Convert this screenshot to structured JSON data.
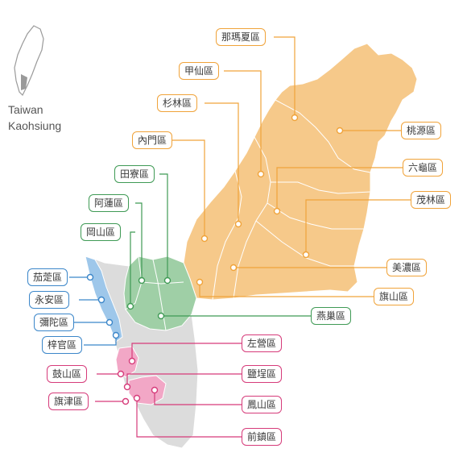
{
  "inset": {
    "line1": "Taiwan",
    "line2": "Kaohsiung"
  },
  "colors": {
    "mountain": "#f6c98a",
    "hill": "#9fcfa6",
    "coast": "#9ec7ea",
    "city": "#f2a7c6",
    "base": "#dcdcdc",
    "orange_line": "#f0a33a",
    "green_line": "#3f9a55",
    "blue_line": "#3b86c9",
    "pink_line": "#d63b7a"
  },
  "districts": {
    "namaxia": "那瑪夏區",
    "jiaxian": "甲仙區",
    "shanlin": "杉林區",
    "neimen": "內門區",
    "taoyuan": "桃源區",
    "liugui": "六龜區",
    "maolin": "茂林區",
    "meinong": "美濃區",
    "qishan": "旗山區",
    "tianliao": "田寮區",
    "alian": "阿蓮區",
    "gangshan": "岡山區",
    "yanchao": "燕巢區",
    "qieding": "茄萣區",
    "yongan": "永安區",
    "mituo": "彌陀區",
    "ziguan": "梓官區",
    "zuoying": "左營區",
    "gushan": "鼓山區",
    "yancheng": "鹽埕區",
    "qijin": "旗津區",
    "fengshan": "鳳山區",
    "qianzhen": "前鎮區"
  }
}
